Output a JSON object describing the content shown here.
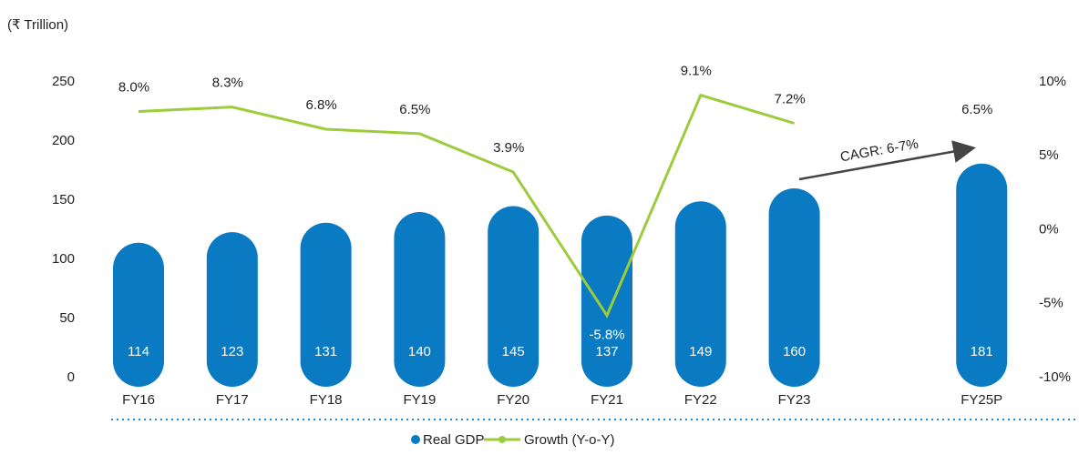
{
  "chart_data": {
    "type": "bar-line",
    "unit_label": "(₹ Trillion)",
    "categories": [
      "FY16",
      "FY17",
      "FY18",
      "FY19",
      "FY20",
      "FY21",
      "FY22",
      "FY23",
      null,
      "FY25P"
    ],
    "series": [
      {
        "name": "Real GDP",
        "color": "#0a7bc2",
        "values": [
          114,
          123,
          131,
          140,
          145,
          137,
          149,
          160,
          null,
          181
        ]
      },
      {
        "name": "Growth (Y-o-Y)",
        "color": "#9ccc3c",
        "axis": "y2",
        "values": [
          8.0,
          8.3,
          6.8,
          6.5,
          3.9,
          -5.8,
          9.1,
          7.2,
          null,
          6.5
        ],
        "value_labels": [
          "8.0%",
          "8.3%",
          "6.8%",
          "6.5%",
          "3.9%",
          "-5.8%",
          "9.1%",
          "7.2%",
          null,
          "6.5%"
        ]
      }
    ],
    "ylim": [
      0,
      250
    ],
    "yticks": [
      0,
      50,
      100,
      150,
      200,
      250
    ],
    "y2lim": [
      -10,
      10
    ],
    "y2ticks": [
      {
        "value": -10,
        "label": "-10%"
      },
      {
        "value": -5,
        "label": "-5%"
      },
      {
        "value": 0,
        "label": "0%"
      },
      {
        "value": 5,
        "label": "5%"
      },
      {
        "value": 10,
        "label": "10%"
      }
    ],
    "annotation": "CAGR: 6-7%"
  }
}
